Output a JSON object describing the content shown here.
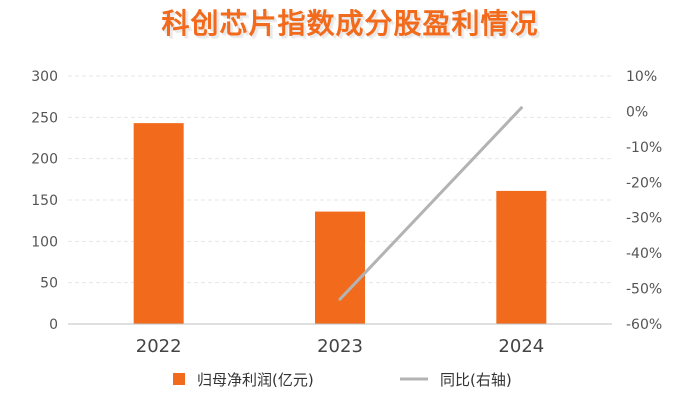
{
  "chart_data": {
    "type": "bar",
    "title": "科创芯片指数成分股盈利情况",
    "categories": [
      "2022",
      "2023",
      "2024"
    ],
    "series": [
      {
        "name": "归母净利润(亿元)",
        "type": "bar",
        "axis": "left",
        "color": "#f26a1b",
        "values": [
          243,
          136,
          161
        ]
      },
      {
        "name": "同比(右轴)",
        "type": "line",
        "axis": "right",
        "color": "#b3b3b3",
        "values": [
          null,
          -53,
          1
        ]
      }
    ],
    "y_left": {
      "min": 0,
      "max": 300,
      "ticks": [
        "0",
        "50",
        "100",
        "150",
        "200",
        "250",
        "300"
      ]
    },
    "y_right": {
      "min": -60,
      "max": 10,
      "unit": "%",
      "ticks": [
        "-60%",
        "-50%",
        "-40%",
        "-30%",
        "-20%",
        "-10%",
        "0%",
        "10%"
      ]
    },
    "grid": true,
    "legend_position": "bottom",
    "xlabel": "",
    "ylabel": ""
  }
}
